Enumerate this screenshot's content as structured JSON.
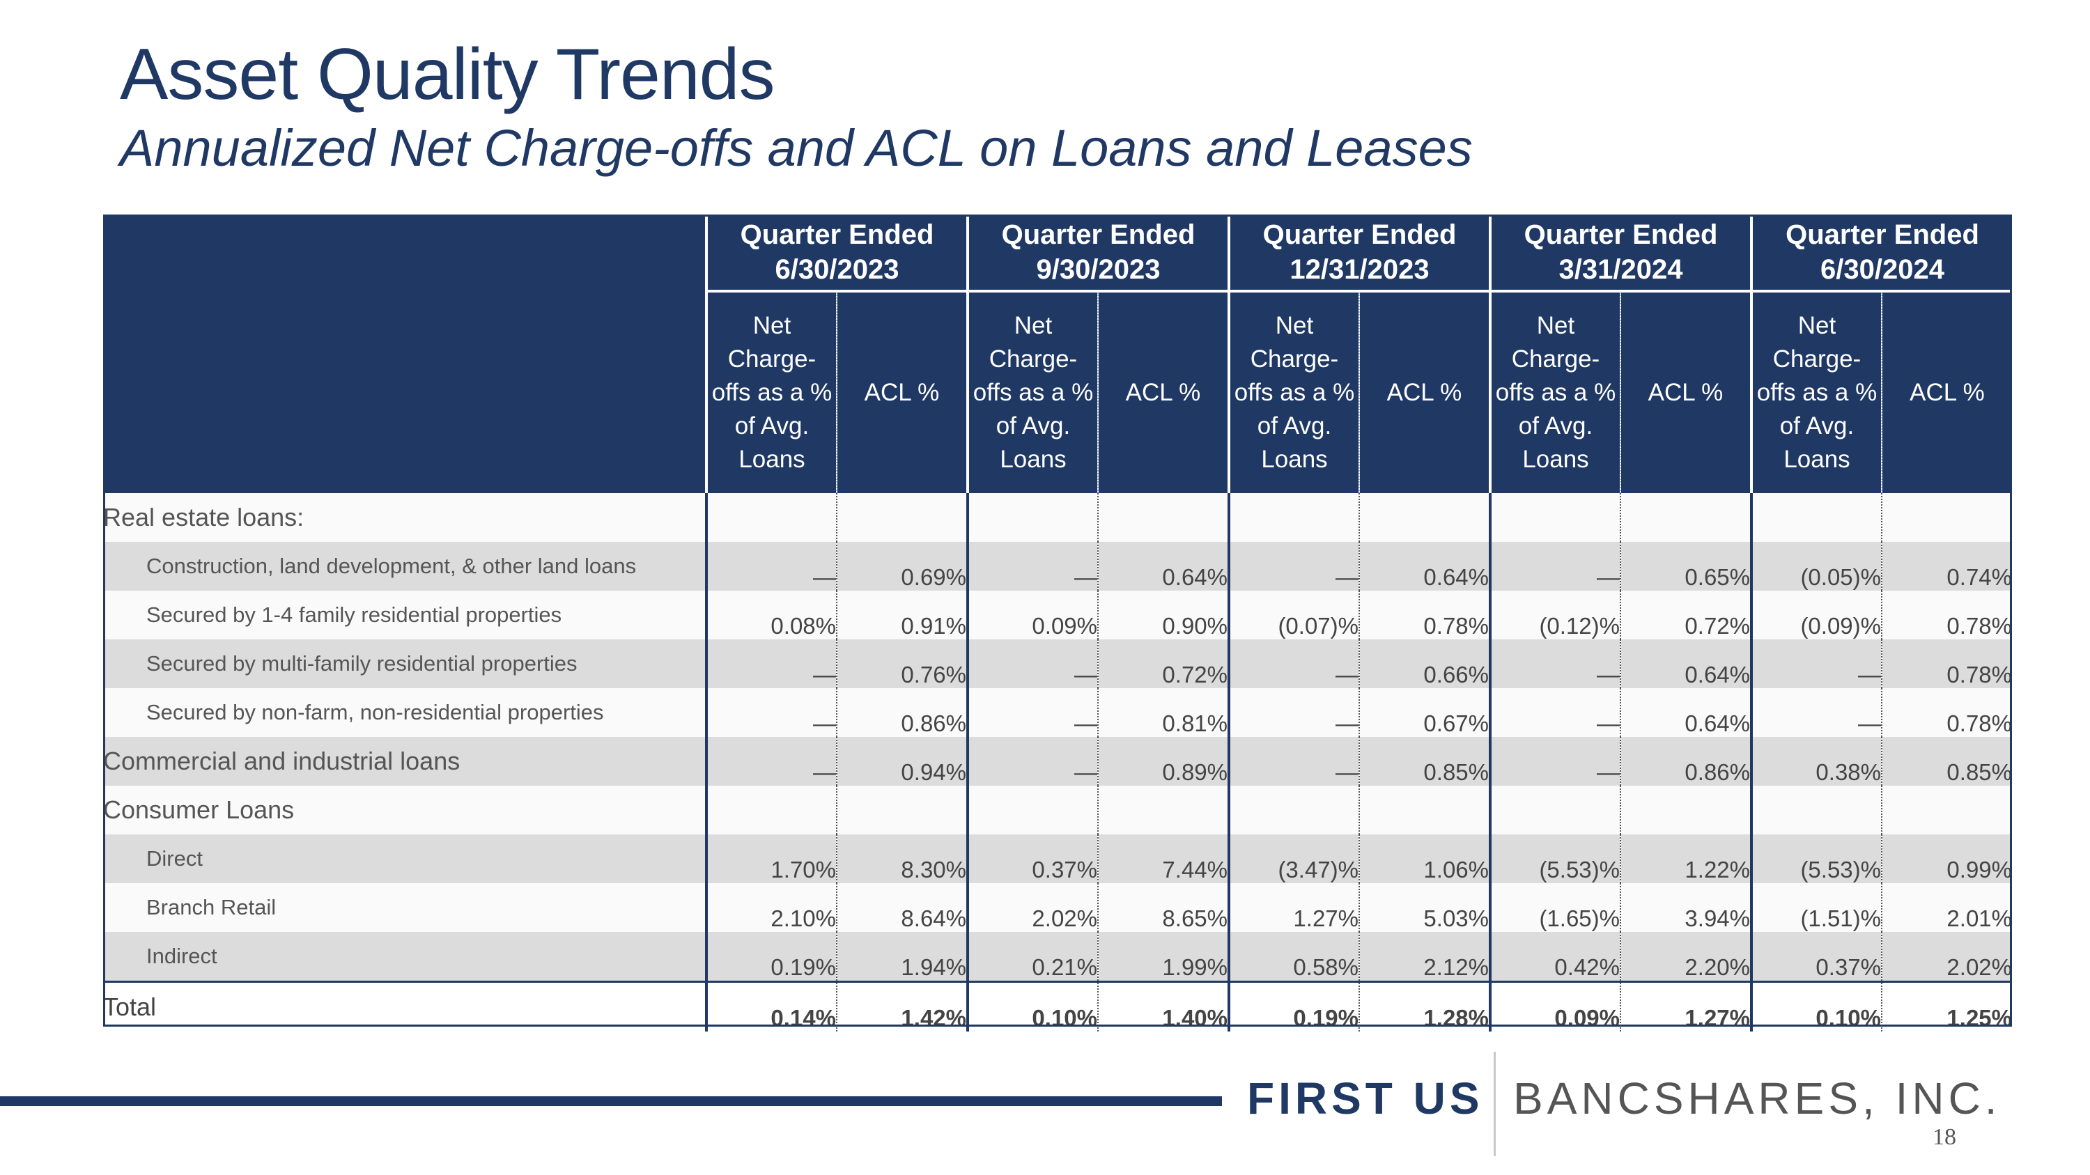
{
  "title": "Asset Quality Trends",
  "subtitle": "Annualized Net Charge-offs and ACL on Loans and Leases",
  "quarters": [
    {
      "line1": "Quarter Ended",
      "line2": "6/30/2023"
    },
    {
      "line1": "Quarter Ended",
      "line2": "9/30/2023"
    },
    {
      "line1": "Quarter Ended",
      "line2": "12/31/2023"
    },
    {
      "line1": "Quarter Ended",
      "line2": "3/31/2024"
    },
    {
      "line1": "Quarter Ended",
      "line2": "6/30/2024"
    }
  ],
  "col_headers": {
    "nco_lines": [
      "Net",
      "Charge-",
      "offs as a %",
      "of Avg.",
      "Loans"
    ],
    "acl": "ACL %"
  },
  "rows": {
    "real_estate": {
      "label": "Real estate loans:"
    },
    "construction": {
      "label": "Construction, land development, & other land loans",
      "values": [
        "—",
        "0.69%",
        "—",
        "0.64%",
        "—",
        "0.64%",
        "—",
        "0.65%",
        "(0.05)%",
        "0.74%"
      ]
    },
    "one_four_family": {
      "label": "Secured by 1-4 family residential properties",
      "values": [
        "0.08%",
        "0.91%",
        "0.09%",
        "0.90%",
        "(0.07)%",
        "0.78%",
        "(0.12)%",
        "0.72%",
        "(0.09)%",
        "0.78%"
      ]
    },
    "multi_family": {
      "label": "Secured by multi-family residential properties",
      "values": [
        "—",
        "0.76%",
        "—",
        "0.72%",
        "—",
        "0.66%",
        "—",
        "0.64%",
        "—",
        "0.78%"
      ]
    },
    "non_farm": {
      "label": "Secured by non-farm, non-residential properties",
      "values": [
        "—",
        "0.86%",
        "—",
        "0.81%",
        "—",
        "0.67%",
        "—",
        "0.64%",
        "—",
        "0.78%"
      ]
    },
    "commercial": {
      "label": "Commercial and industrial loans",
      "values": [
        "—",
        "0.94%",
        "—",
        "0.89%",
        "—",
        "0.85%",
        "—",
        "0.86%",
        "0.38%",
        "0.85%"
      ]
    },
    "consumer": {
      "label": "Consumer Loans"
    },
    "direct": {
      "label": "Direct",
      "values": [
        "1.70%",
        "8.30%",
        "0.37%",
        "7.44%",
        "(3.47)%",
        "1.06%",
        "(5.53)%",
        "1.22%",
        "(5.53)%",
        "0.99%"
      ]
    },
    "branch_retail": {
      "label": "Branch Retail",
      "values": [
        "2.10%",
        "8.64%",
        "2.02%",
        "8.65%",
        "1.27%",
        "5.03%",
        "(1.65)%",
        "3.94%",
        "(1.51)%",
        "2.01%"
      ]
    },
    "indirect": {
      "label": "Indirect",
      "values": [
        "0.19%",
        "1.94%",
        "0.21%",
        "1.99%",
        "0.58%",
        "2.12%",
        "0.42%",
        "2.20%",
        "0.37%",
        "2.02%"
      ]
    },
    "total": {
      "label": "Total",
      "values": [
        "0.14%",
        "1.42%",
        "0.10%",
        "1.40%",
        "0.19%",
        "1.28%",
        "0.09%",
        "1.27%",
        "0.10%",
        "1.25%"
      ]
    }
  },
  "logo": {
    "first": "FIRST US",
    "rest": "BANCSHARES, INC."
  },
  "page_number": "18"
}
